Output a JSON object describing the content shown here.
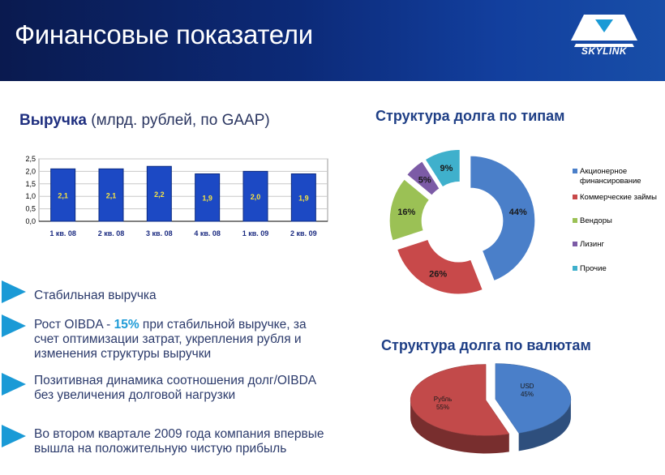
{
  "header": {
    "title": "Финансовые показатели",
    "logo_text": "SKYLINK"
  },
  "revenue": {
    "title_bold": "Выручка",
    "title_rest": " (млрд. рублей, по GAAP)"
  },
  "debt_types": {
    "title": "Структура долга по типам"
  },
  "debt_currency": {
    "title": "Структура долга по валютам"
  },
  "bullets": [
    {
      "text": "Стабильная выручка"
    },
    {
      "pre": "Рост OIBDA - ",
      "hl": "15%",
      "post": " при стабильной выручке, за счет оптимизации затрат, укрепления рубля и изменения структуры выручки"
    },
    {
      "text": "Позитивная динамика соотношения долг/OIBDA\nбез увеличения долговой нагрузки"
    },
    {
      "text": "Во втором квартале 2009 года компания впервые  вышла  на положительную чистую прибыль"
    }
  ],
  "colors": {
    "bar": "#1c49c4",
    "bar_label": "#f5e342",
    "bullet": "#1a9ad6",
    "header": "#0c2a78"
  },
  "chart_data": [
    {
      "type": "bar",
      "categories": [
        "1 кв. 08",
        "2 кв. 08",
        "3 кв. 08",
        "4 кв. 08",
        "1 кв. 09",
        "2 кв. 09"
      ],
      "values": [
        2.1,
        2.1,
        2.2,
        1.9,
        2.0,
        1.9
      ],
      "labels": [
        "2,1",
        "2,1",
        "2,2",
        "1,9",
        "2,0",
        "1,9"
      ],
      "yticks": [
        "0,0",
        "0,5",
        "1,0",
        "1,5",
        "2,0",
        "2,5"
      ],
      "ylim": [
        0,
        2.5
      ],
      "grid": true
    },
    {
      "type": "pie",
      "variant": "donut",
      "legend": "right",
      "slices": [
        {
          "name": "Акционерное финансирование",
          "value": 44,
          "label": "44%",
          "color": "#4a7fc9"
        },
        {
          "name": "Коммерческие займы",
          "value": 26,
          "label": "26%",
          "color": "#c8494a"
        },
        {
          "name": "Вендоры",
          "value": 16,
          "label": "16%",
          "color": "#9bc155"
        },
        {
          "name": "Лизинг",
          "value": 5,
          "label": "5%",
          "color": "#7c5ba6"
        },
        {
          "name": "Прочие",
          "value": 9,
          "label": "9%",
          "color": "#3fb0cc"
        }
      ]
    },
    {
      "type": "pie",
      "variant": "3d",
      "slices": [
        {
          "name": "USD",
          "value": 45,
          "label": "45%",
          "color": "#4a7fc9"
        },
        {
          "name": "Рубль",
          "value": 55,
          "label": "55%",
          "color": "#c24a4a"
        }
      ]
    }
  ]
}
